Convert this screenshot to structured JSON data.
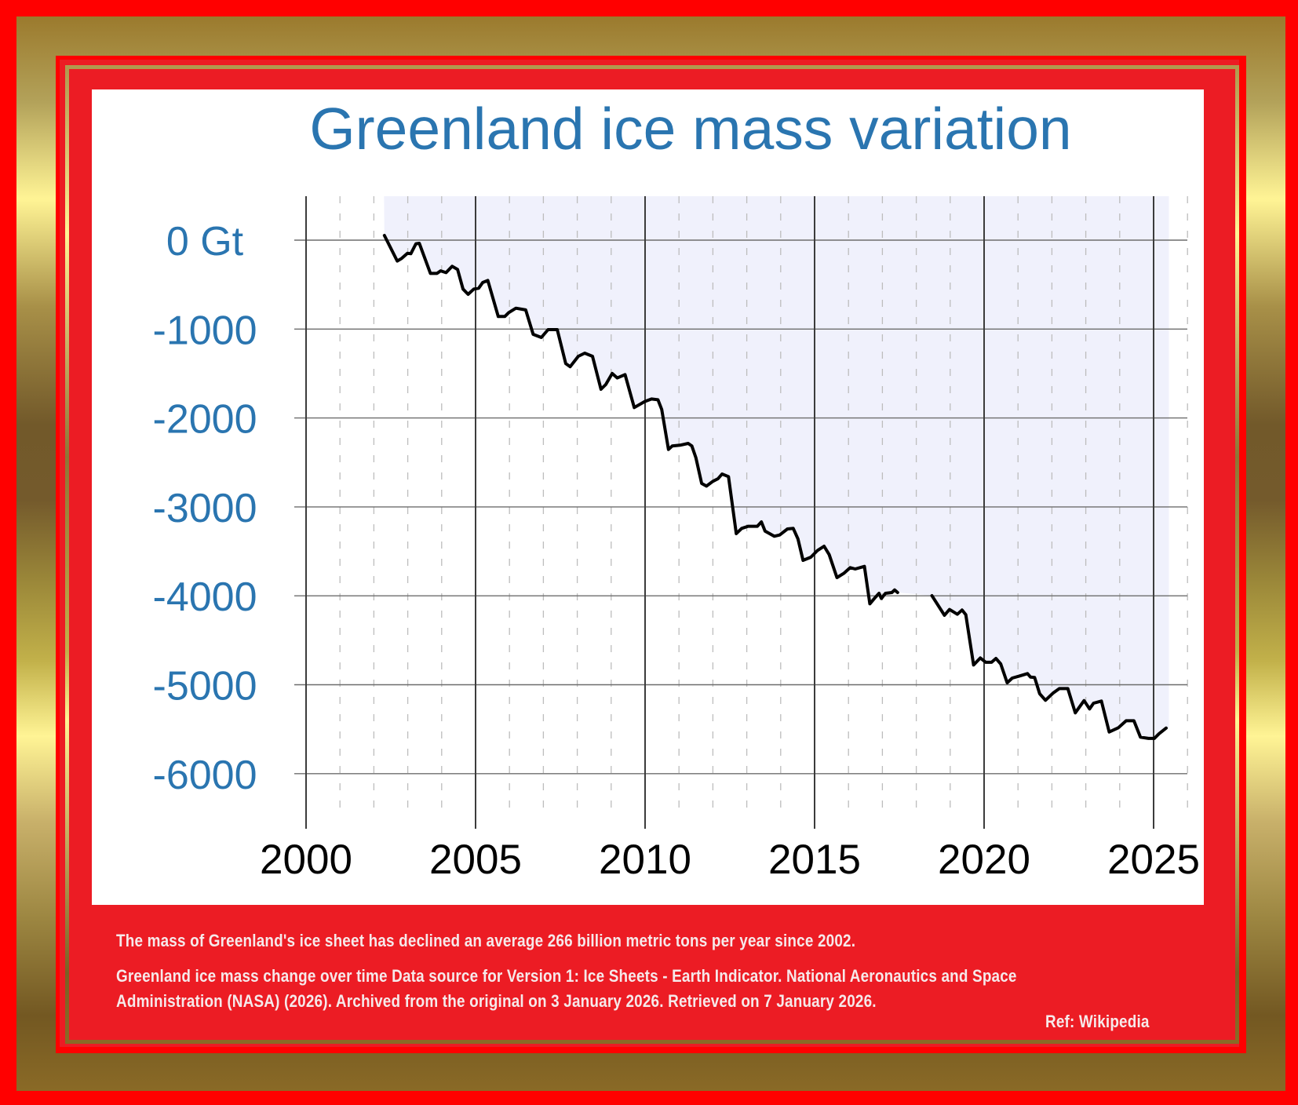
{
  "colors": {
    "title": "#2a75b0",
    "y_labels": "#2a75b0",
    "x_labels": "#000000",
    "fill": "#f0f1fc",
    "line": "#000000",
    "panel_red": "#ec1c24",
    "frame_red": "#ff0000",
    "footer_text": "#f6e9ea"
  },
  "chart_data": {
    "type": "line",
    "title": "Greenland ice mass variation",
    "xlabel": "",
    "ylabel": "",
    "xlim": [
      2000,
      2026
    ],
    "ylim": [
      -6500,
      500
    ],
    "grid": true,
    "x_ticks": [
      "2000",
      "2005",
      "2010",
      "2015",
      "2020",
      "2025"
    ],
    "x_tick_values": [
      2000,
      2005,
      2010,
      2015,
      2020,
      2025
    ],
    "y_ticks": [
      "0 Gt",
      "-1000",
      "-2000",
      "-3000",
      "-4000",
      "-5000",
      "-6000"
    ],
    "y_tick_values": [
      0,
      -1000,
      -2000,
      -3000,
      -4000,
      -5000,
      -6000
    ],
    "shaded_range": [
      2002.3,
      2025.45
    ],
    "series": [
      {
        "name": "Greenland ice mass change (Gt)",
        "segments": [
          [
            [
              2002.31,
              53
            ],
            [
              2002.69,
              -235
            ],
            [
              2002.82,
              -206
            ],
            [
              2002.99,
              -147
            ],
            [
              2003.09,
              -153
            ],
            [
              2003.24,
              -41
            ],
            [
              2003.34,
              -35
            ],
            [
              2003.67,
              -374
            ],
            [
              2003.86,
              -374
            ],
            [
              2003.97,
              -345
            ],
            [
              2004.13,
              -365
            ],
            [
              2004.31,
              -294
            ],
            [
              2004.47,
              -330
            ],
            [
              2004.63,
              -550
            ],
            [
              2004.78,
              -609
            ],
            [
              2004.95,
              -550
            ],
            [
              2005.09,
              -541
            ],
            [
              2005.21,
              -477
            ],
            [
              2005.36,
              -453
            ],
            [
              2005.67,
              -859
            ],
            [
              2005.86,
              -859
            ],
            [
              2005.98,
              -815
            ],
            [
              2006.19,
              -765
            ],
            [
              2006.48,
              -785
            ],
            [
              2006.7,
              -1059
            ],
            [
              2006.94,
              -1094
            ],
            [
              2007.14,
              -1006
            ],
            [
              2007.41,
              -1006
            ],
            [
              2007.66,
              -1388
            ],
            [
              2007.79,
              -1424
            ],
            [
              2008.03,
              -1306
            ],
            [
              2008.22,
              -1271
            ],
            [
              2008.45,
              -1306
            ],
            [
              2008.7,
              -1677
            ],
            [
              2008.84,
              -1624
            ],
            [
              2009.03,
              -1500
            ],
            [
              2009.18,
              -1550
            ],
            [
              2009.41,
              -1512
            ],
            [
              2009.68,
              -1883
            ],
            [
              2009.99,
              -1815
            ],
            [
              2010.19,
              -1786
            ],
            [
              2010.38,
              -1795
            ],
            [
              2010.49,
              -1904
            ],
            [
              2010.69,
              -2354
            ],
            [
              2010.8,
              -2315
            ],
            [
              2011.03,
              -2306
            ],
            [
              2011.27,
              -2286
            ],
            [
              2011.38,
              -2315
            ],
            [
              2011.5,
              -2448
            ],
            [
              2011.67,
              -2736
            ],
            [
              2011.81,
              -2766
            ],
            [
              2012.0,
              -2712
            ],
            [
              2012.15,
              -2683
            ],
            [
              2012.27,
              -2630
            ],
            [
              2012.46,
              -2659
            ],
            [
              2012.69,
              -3301
            ],
            [
              2012.85,
              -3242
            ],
            [
              2013.04,
              -3218
            ],
            [
              2013.31,
              -3218
            ],
            [
              2013.43,
              -3169
            ],
            [
              2013.54,
              -3272
            ],
            [
              2013.81,
              -3330
            ],
            [
              2013.97,
              -3316
            ],
            [
              2014.2,
              -3248
            ],
            [
              2014.37,
              -3242
            ],
            [
              2014.51,
              -3360
            ],
            [
              2014.66,
              -3601
            ],
            [
              2014.89,
              -3566
            ],
            [
              2015.08,
              -3492
            ],
            [
              2015.28,
              -3442
            ],
            [
              2015.43,
              -3537
            ],
            [
              2015.66,
              -3795
            ],
            [
              2015.86,
              -3748
            ],
            [
              2016.05,
              -3683
            ],
            [
              2016.2,
              -3698
            ],
            [
              2016.47,
              -3669
            ],
            [
              2016.63,
              -4090
            ],
            [
              2016.78,
              -4022
            ],
            [
              2016.9,
              -3972
            ],
            [
              2016.97,
              -4030
            ],
            [
              2017.09,
              -3972
            ],
            [
              2017.28,
              -3963
            ],
            [
              2017.36,
              -3934
            ],
            [
              2017.45,
              -3963
            ]
          ],
          [
            [
              2018.46,
              -3998
            ],
            [
              2018.83,
              -4219
            ],
            [
              2018.98,
              -4154
            ],
            [
              2019.21,
              -4207
            ],
            [
              2019.35,
              -4160
            ],
            [
              2019.46,
              -4213
            ],
            [
              2019.69,
              -4778
            ],
            [
              2019.89,
              -4699
            ],
            [
              2020.05,
              -4748
            ],
            [
              2020.22,
              -4748
            ],
            [
              2020.35,
              -4704
            ],
            [
              2020.49,
              -4766
            ],
            [
              2020.68,
              -4978
            ],
            [
              2020.83,
              -4925
            ],
            [
              2021.03,
              -4904
            ],
            [
              2021.28,
              -4875
            ],
            [
              2021.37,
              -4914
            ],
            [
              2021.49,
              -4919
            ],
            [
              2021.64,
              -5101
            ],
            [
              2021.81,
              -5175
            ],
            [
              2022.03,
              -5095
            ],
            [
              2022.22,
              -5043
            ],
            [
              2022.47,
              -5043
            ],
            [
              2022.69,
              -5316
            ],
            [
              2022.95,
              -5178
            ],
            [
              2023.11,
              -5272
            ],
            [
              2023.23,
              -5207
            ],
            [
              2023.46,
              -5184
            ],
            [
              2023.69,
              -5531
            ],
            [
              2023.96,
              -5484
            ],
            [
              2024.19,
              -5405
            ],
            [
              2024.42,
              -5405
            ],
            [
              2024.61,
              -5590
            ],
            [
              2024.85,
              -5604
            ],
            [
              2025.02,
              -5604
            ],
            [
              2025.16,
              -5551
            ],
            [
              2025.37,
              -5487
            ]
          ]
        ]
      }
    ]
  },
  "footer": {
    "line1": "The mass of Greenland's ice sheet has declined an average 266 billion metric tons per year since 2002.",
    "line2": "Greenland ice mass change over time Data source for Version 1: Ice Sheets - Earth Indicator. National Aeronautics and Space",
    "line3": "Administration (NASA) (2026). Archived from the original on 3 January 2026. Retrieved on 7 January 2026.",
    "ref": "Ref: Wikipedia"
  }
}
